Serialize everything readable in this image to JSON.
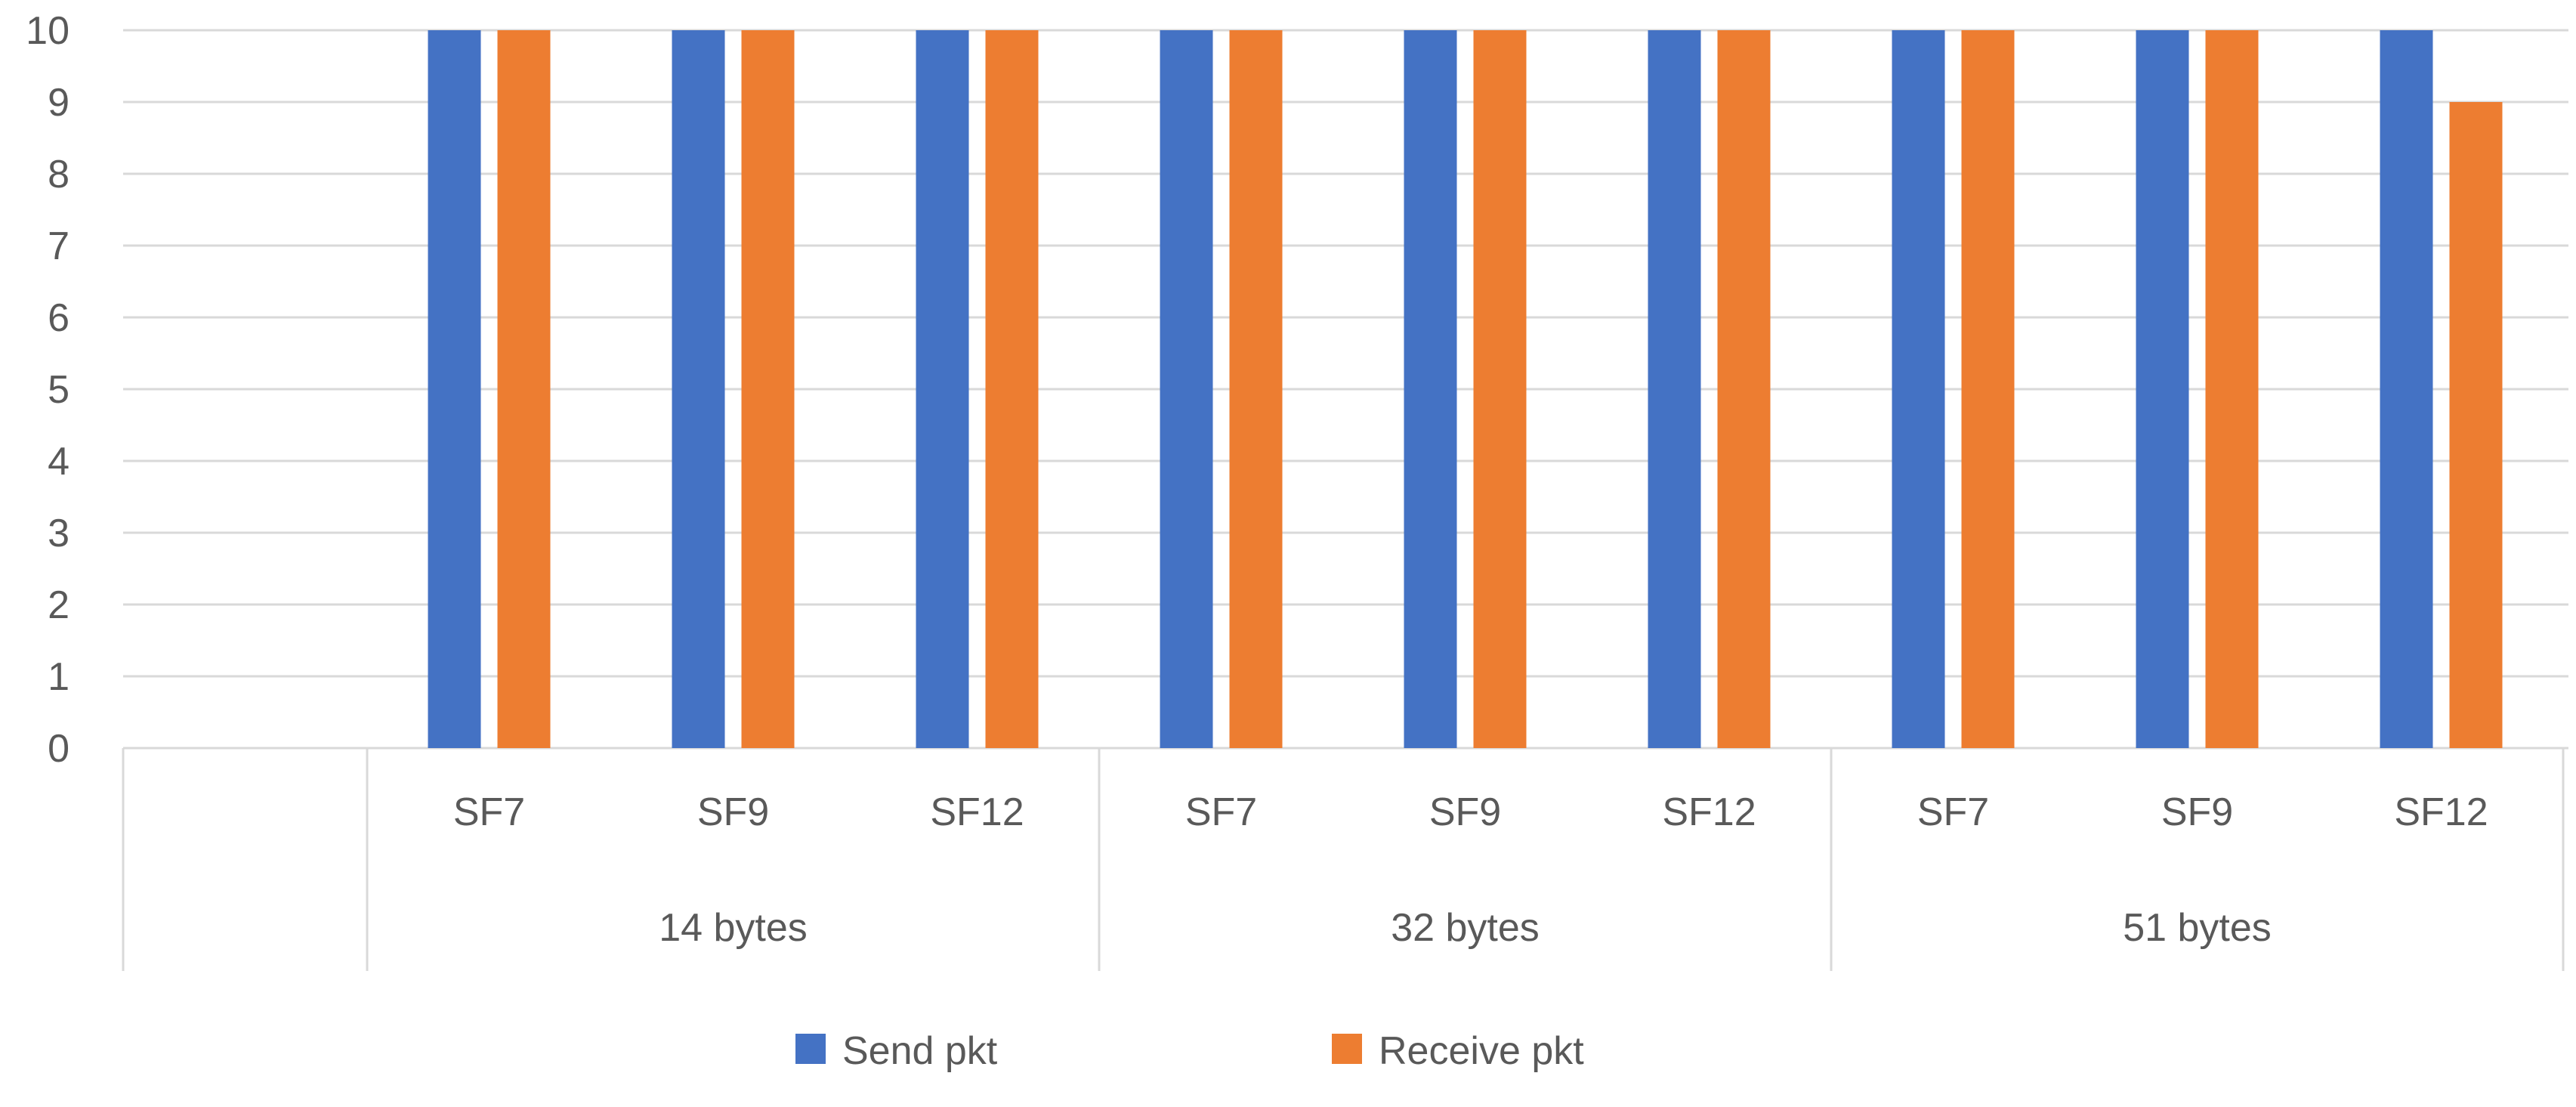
{
  "chart_data": {
    "type": "bar",
    "y_ticks": [
      "0",
      "1",
      "2",
      "3",
      "4",
      "5",
      "6",
      "7",
      "8",
      "9",
      "10"
    ],
    "ylim": [
      0,
      10
    ],
    "grid": true,
    "legend_position": "bottom-center",
    "groups": [
      {
        "label": "",
        "categories": []
      },
      {
        "label": "14 bytes",
        "categories": [
          "SF7",
          "SF9",
          "SF12"
        ]
      },
      {
        "label": "32 bytes",
        "categories": [
          "SF7",
          "SF9",
          "SF12"
        ]
      },
      {
        "label": "51 bytes",
        "categories": [
          "SF7",
          "SF9",
          "SF12"
        ]
      }
    ],
    "series": [
      {
        "name": "Send pkt",
        "color": "#4472C4",
        "values": [
          10,
          10,
          10,
          10,
          10,
          10,
          10,
          10,
          10
        ]
      },
      {
        "name": "Receive pkt",
        "color": "#ED7D31",
        "values": [
          10,
          10,
          10,
          10,
          10,
          10,
          10,
          10,
          9
        ]
      }
    ]
  }
}
